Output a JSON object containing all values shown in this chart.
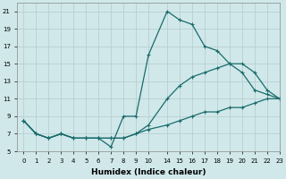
{
  "background_color": "#d0e8ea",
  "grid_color": "#b8cfd2",
  "line_color": "#1a6b6b",
  "xlabel": "Humidex (Indice chaleur)",
  "xlim_display": [
    -0.5,
    23.5
  ],
  "ylim": [
    5,
    22
  ],
  "yticks": [
    5,
    7,
    9,
    11,
    13,
    15,
    17,
    19,
    21
  ],
  "xticks_real": [
    0,
    1,
    2,
    3,
    4,
    5,
    6,
    7,
    8,
    9,
    10,
    14,
    15,
    16,
    17,
    18,
    19,
    20,
    21,
    22,
    23
  ],
  "lines": [
    {
      "x": [
        0,
        1,
        2,
        3,
        4,
        5,
        6,
        7,
        8,
        9,
        10,
        14,
        15,
        16,
        17,
        18,
        19,
        20,
        21,
        22,
        23
      ],
      "y": [
        8.5,
        7.0,
        6.5,
        7.0,
        6.5,
        6.5,
        6.5,
        5.5,
        9.0,
        9.0,
        16.0,
        21.0,
        20.0,
        19.5,
        17.0,
        16.5,
        15.0,
        14.0,
        12.0,
        11.5,
        11.0
      ]
    },
    {
      "x": [
        0,
        1,
        2,
        3,
        4,
        5,
        6,
        7,
        8,
        9,
        10,
        14,
        15,
        16,
        17,
        18,
        19,
        20,
        21,
        22,
        23
      ],
      "y": [
        8.5,
        7.0,
        6.5,
        7.0,
        6.5,
        6.5,
        6.5,
        6.5,
        6.5,
        7.0,
        8.0,
        11.0,
        12.5,
        13.5,
        14.0,
        14.5,
        15.0,
        15.0,
        14.0,
        12.0,
        11.0
      ]
    },
    {
      "x": [
        0,
        1,
        2,
        3,
        4,
        5,
        6,
        7,
        8,
        9,
        10,
        14,
        15,
        16,
        17,
        18,
        19,
        20,
        21,
        22,
        23
      ],
      "y": [
        8.5,
        7.0,
        6.5,
        7.0,
        6.5,
        6.5,
        6.5,
        6.5,
        6.5,
        7.0,
        7.5,
        8.0,
        8.5,
        9.0,
        9.5,
        9.5,
        10.0,
        10.0,
        10.5,
        11.0,
        11.0
      ]
    }
  ]
}
